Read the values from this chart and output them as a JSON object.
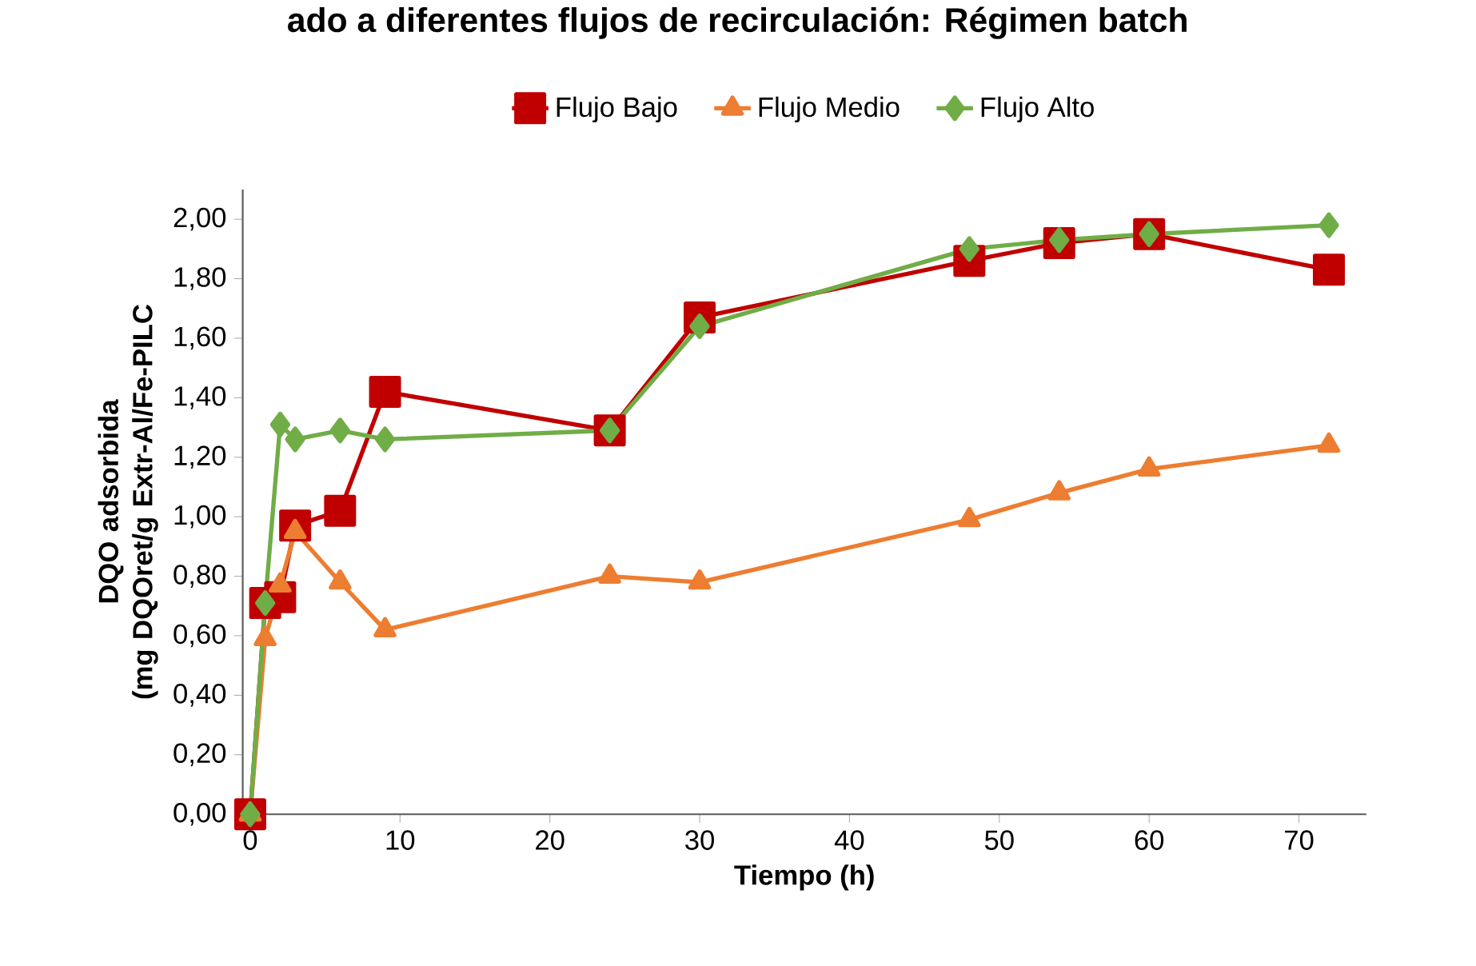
{
  "chart_data": {
    "type": "line",
    "title": "ado a diferentes flujos de recirculación: Régimen batch",
    "xlabel": "Tiempo (h)",
    "ylabel": "DQO adsorbida\n(mg DQOret/g Extr-Al/Fe-PILC",
    "x": [
      0,
      1,
      2,
      3,
      6,
      9,
      24,
      30,
      48,
      54,
      60,
      72
    ],
    "series": [
      {
        "name": "Flujo Bajo",
        "color": "#c00000",
        "marker": "square",
        "values": [
          0,
          0.71,
          0.73,
          0.97,
          1.02,
          1.42,
          1.29,
          1.67,
          1.86,
          1.92,
          1.95,
          1.83
        ]
      },
      {
        "name": "Flujo Medio",
        "color": "#ed7d31",
        "marker": "triangle",
        "values": [
          0,
          0.59,
          0.77,
          0.95,
          0.78,
          0.62,
          0.8,
          0.78,
          0.99,
          1.08,
          1.16,
          1.24
        ]
      },
      {
        "name": "Flujo Alto",
        "color": "#70ad47",
        "marker": "diamond",
        "values": [
          0,
          0.71,
          1.31,
          1.26,
          1.29,
          1.26,
          1.29,
          1.64,
          1.9,
          1.93,
          1.95,
          1.98
        ]
      }
    ],
    "xlim": [
      -0.5,
      74.5
    ],
    "ylim": [
      0,
      2.1
    ],
    "xticks": [
      0,
      10,
      20,
      30,
      40,
      50,
      60,
      70
    ],
    "yticks": [
      {
        "value": 0,
        "label": "0,00"
      },
      {
        "value": 0.2,
        "label": "0,20"
      },
      {
        "value": 0.4,
        "label": "0,40"
      },
      {
        "value": 0.6,
        "label": "0,60"
      },
      {
        "value": 0.8,
        "label": "0,80"
      },
      {
        "value": 1.0,
        "label": "1,00"
      },
      {
        "value": 1.2,
        "label": "1,20"
      },
      {
        "value": 1.4,
        "label": "1,40"
      },
      {
        "value": 1.6,
        "label": "1,60"
      },
      {
        "value": 1.8,
        "label": "1,80"
      },
      {
        "value": 2.0,
        "label": "2,00"
      }
    ],
    "grid": false,
    "legend": "top",
    "line_style": "solid"
  }
}
